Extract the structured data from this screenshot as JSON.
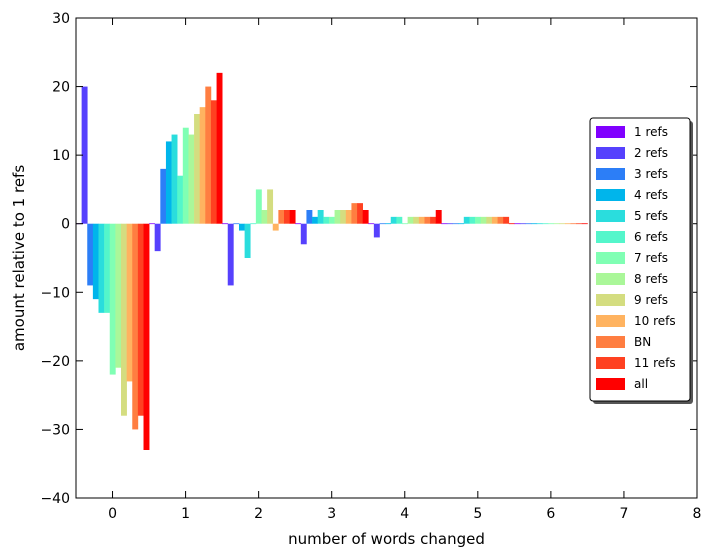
{
  "chart_data": {
    "type": "bar",
    "title": "",
    "xlabel": "number of words changed",
    "ylabel": "amount relative to 1 refs",
    "xlim": [
      -0.5,
      8
    ],
    "ylim": [
      -40,
      30
    ],
    "xticks": [
      0,
      1,
      2,
      3,
      4,
      5,
      6,
      7,
      8
    ],
    "yticks": [
      -40,
      -30,
      -20,
      -10,
      0,
      10,
      20,
      30
    ],
    "bar_width": 0.077,
    "grid": false,
    "legend_position": "right",
    "categories": [
      0,
      1,
      2,
      3,
      4,
      5,
      6
    ],
    "series": [
      {
        "name": "1 refs",
        "color": "#8000ff",
        "values": [
          0,
          0,
          0,
          0,
          0,
          0,
          0
        ]
      },
      {
        "name": "2 refs",
        "color": "#5641fd",
        "values": [
          20,
          -4,
          -9,
          -3,
          -2,
          0,
          0
        ]
      },
      {
        "name": "3 refs",
        "color": "#2c7ef7",
        "values": [
          -9,
          8,
          0,
          2,
          0,
          0,
          0
        ]
      },
      {
        "name": "4 refs",
        "color": "#00b5eb",
        "values": [
          -11,
          12,
          -1,
          1,
          0,
          0,
          0
        ]
      },
      {
        "name": "5 refs",
        "color": "#2adddd",
        "values": [
          -13,
          13,
          -5,
          2,
          1,
          1,
          0
        ]
      },
      {
        "name": "6 refs",
        "color": "#54f6cb",
        "values": [
          -13,
          7,
          0,
          1,
          1,
          1,
          0
        ]
      },
      {
        "name": "7 refs",
        "color": "#80ffb4",
        "values": [
          -22,
          14,
          5,
          1,
          0,
          1,
          0
        ]
      },
      {
        "name": "8 refs",
        "color": "#aaf799",
        "values": [
          -21,
          13,
          2,
          2,
          1,
          1,
          0
        ]
      },
      {
        "name": "9 refs",
        "color": "#d4dd80",
        "values": [
          -28,
          16,
          5,
          2,
          1,
          1,
          0
        ]
      },
      {
        "name": "10 refs",
        "color": "#ffb360",
        "values": [
          -23,
          17,
          -1,
          2,
          1,
          1,
          0
        ]
      },
      {
        "name": "BN",
        "color": "#ff7e41",
        "values": [
          -30,
          20,
          2,
          3,
          1,
          1,
          0
        ]
      },
      {
        "name": "11 refs",
        "color": "#ff4121",
        "values": [
          -28,
          18,
          2,
          3,
          1,
          1,
          0
        ]
      },
      {
        "name": "all",
        "color": "#ff0000",
        "values": [
          -33,
          22,
          2,
          2,
          2,
          0,
          0
        ]
      }
    ]
  }
}
